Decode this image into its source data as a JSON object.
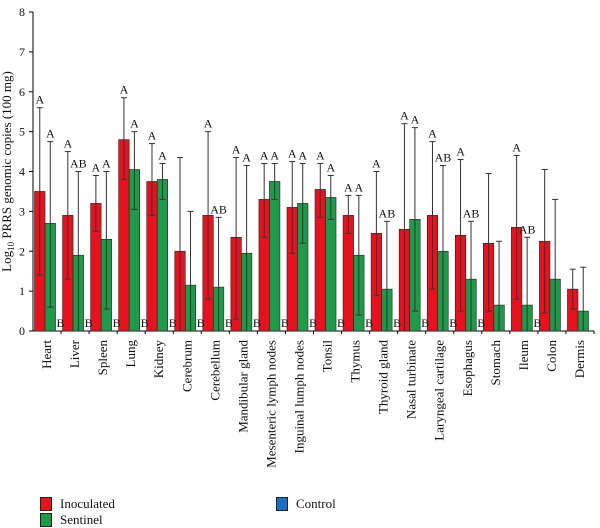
{
  "chart_data": {
    "type": "bar",
    "ylabel": "Log10 PRRS genomic copies (100 mg)",
    "ylabel_parts": {
      "prefix": "Log",
      "sub": "10",
      "suffix": " PRRS genomic copies (100 mg)"
    },
    "ylim": [
      0,
      8
    ],
    "yticks": [
      0,
      1,
      2,
      3,
      4,
      5,
      6,
      7,
      8
    ],
    "grid": false,
    "legend_position": "bottom",
    "categories": [
      "Heart",
      "Liver",
      "Spleen",
      "Lung",
      "Kidney",
      "Cerebrum",
      "Cerebellum",
      "Mandibular gland",
      "Mesenteric lymph nodes",
      "Inguinal lumph nodes",
      "Tonsil",
      "Thymus",
      "Thyroid gland",
      "Nasal turbinate",
      "Laryngeal cartilage",
      "Esophagus",
      "Stomach",
      "Ileum",
      "Colon",
      "Dermis"
    ],
    "series": [
      {
        "name": "Inoculated",
        "color": "#e8121e",
        "values": [
          3.5,
          2.9,
          3.2,
          4.8,
          3.75,
          2.0,
          2.9,
          2.35,
          3.3,
          3.1,
          3.55,
          2.9,
          2.45,
          2.55,
          2.9,
          2.4,
          2.2,
          2.6,
          2.25,
          1.05
        ],
        "error_high": [
          5.6,
          4.5,
          3.9,
          5.85,
          4.7,
          4.35,
          5.0,
          4.35,
          4.2,
          4.25,
          4.2,
          3.4,
          4.0,
          5.2,
          4.75,
          4.3,
          3.95,
          4.4,
          4.05,
          1.55
        ],
        "error_low": [
          1.4,
          1.3,
          2.5,
          3.8,
          2.9,
          0.0,
          0.8,
          0.3,
          2.35,
          1.95,
          2.85,
          2.45,
          0.9,
          0.0,
          1.05,
          0.5,
          0.5,
          0.8,
          0.45,
          0.55
        ],
        "sig_labels": [
          "A",
          "A",
          "A",
          "A",
          "A",
          "",
          "A",
          "A",
          "A",
          "A",
          "A",
          "A",
          "A",
          "A",
          "A",
          "A",
          "",
          "A",
          "",
          ""
        ]
      },
      {
        "name": "Sentinel",
        "color": "#1f9a4a",
        "values": [
          2.7,
          1.9,
          2.3,
          4.05,
          3.8,
          1.15,
          1.1,
          1.95,
          3.75,
          3.2,
          3.35,
          1.9,
          1.05,
          2.8,
          2.0,
          1.3,
          0.65,
          0.65,
          1.3,
          0.5
        ],
        "error_high": [
          4.75,
          4.0,
          4.0,
          5.0,
          4.2,
          3.0,
          2.85,
          4.15,
          4.2,
          4.2,
          3.9,
          3.4,
          2.75,
          5.1,
          4.15,
          2.75,
          2.25,
          2.35,
          3.3,
          1.6
        ],
        "error_low": [
          0.6,
          0.0,
          0.55,
          3.05,
          3.3,
          0.0,
          0.0,
          0.0,
          3.3,
          2.2,
          2.8,
          0.4,
          0.0,
          0.5,
          0.0,
          0.0,
          0.0,
          0.0,
          0.0,
          0.0
        ],
        "sig_labels": [
          "A",
          "AB",
          "A",
          "A",
          "A",
          "",
          "AB",
          "A",
          "A",
          "A",
          "A",
          "A",
          "AB",
          "A",
          "AB",
          "AB",
          "",
          "AB",
          "",
          ""
        ]
      },
      {
        "name": "Control",
        "color": "#1a6fc4",
        "values": [
          0,
          0,
          0,
          0,
          0,
          0,
          0,
          0,
          0,
          0,
          0,
          0,
          0,
          0,
          0,
          0,
          0,
          0,
          0,
          0
        ],
        "sig_labels": [
          "B",
          "B",
          "B",
          "B",
          "B",
          "B",
          "B",
          "B",
          "B",
          "B",
          "B",
          "B",
          "B",
          "B",
          "B",
          "B",
          "",
          "B",
          "",
          ""
        ]
      }
    ]
  }
}
